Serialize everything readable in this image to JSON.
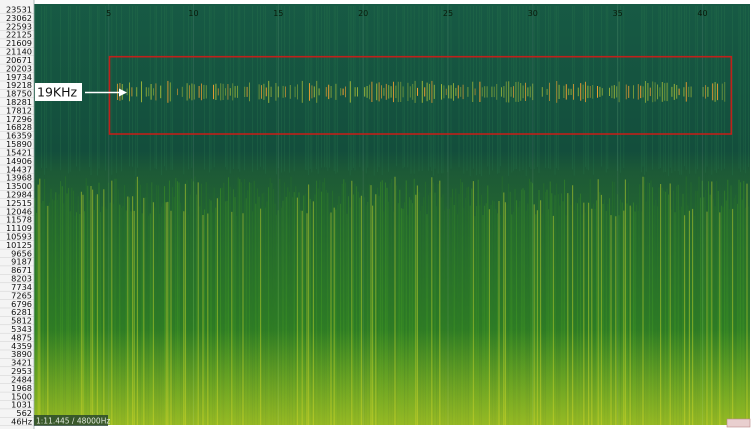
{
  "chart_data": {
    "type": "heatmap",
    "title": "",
    "xlabel": "",
    "ylabel": "",
    "x_ticks": [
      5,
      10,
      15,
      20,
      25,
      30,
      35,
      40
    ],
    "xlim": [
      0.6,
      42.8
    ],
    "y_tick_labels": [
      "23531",
      "23062",
      "22593",
      "22125",
      "21609",
      "21140",
      "20671",
      "20203",
      "19734",
      "19218",
      "18750",
      "18281",
      "17812",
      "17296",
      "16828",
      "16359",
      "15890",
      "15421",
      "14906",
      "14437",
      "13968",
      "13500",
      "12984",
      "12515",
      "12046",
      "11578",
      "11109",
      "10593",
      "10125",
      "9656",
      "9187",
      "8671",
      "8203",
      "7734",
      "7265",
      "6796",
      "6281",
      "5812",
      "5343",
      "4875",
      "4359",
      "3890",
      "3421",
      "2953",
      "2484",
      "1968",
      "1500",
      "1031",
      "562",
      "46Hz"
    ],
    "ylim_hz": [
      46,
      24000
    ],
    "band_annotation": {
      "label": "19KHz",
      "x_range": [
        5.05,
        41.7
      ],
      "y_range_hz": [
        16600,
        21000
      ],
      "center_hz": 19000
    },
    "status": "1:11.445 / 48000Hz",
    "colors": {
      "low": "#0c3b30",
      "mid": "#2f8f1f",
      "high": "#e0dc2a",
      "band_line": "#f2a030",
      "box": "#c0201a"
    }
  }
}
